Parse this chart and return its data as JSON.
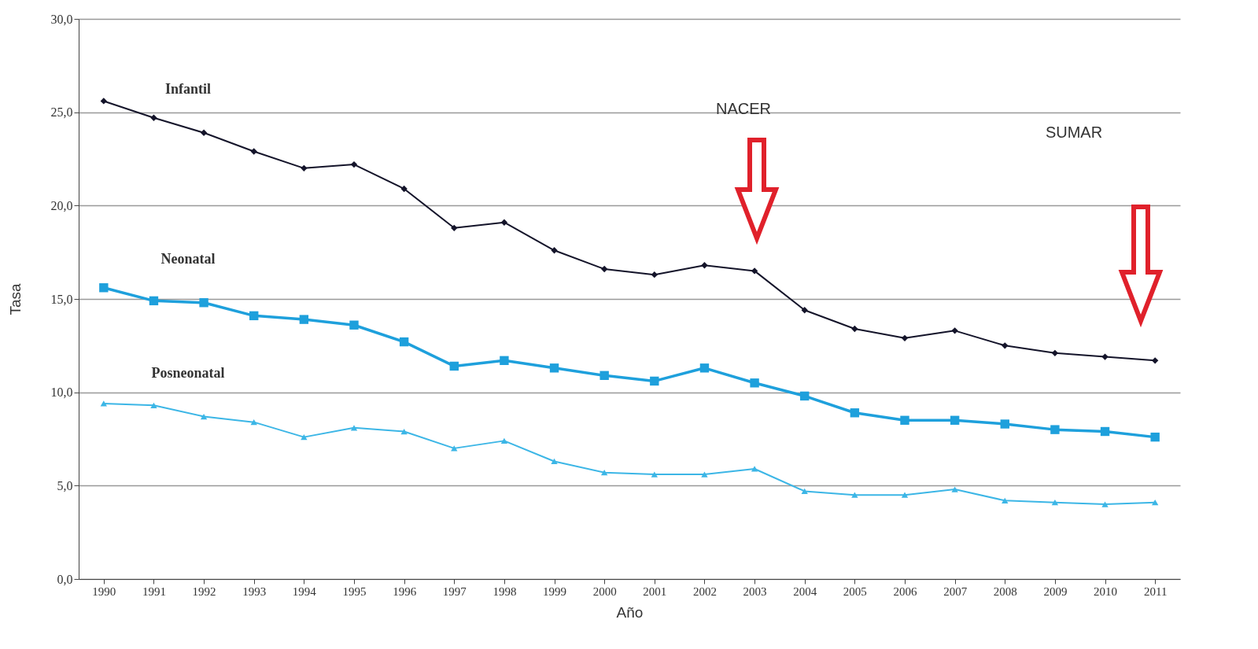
{
  "chart_data": {
    "type": "line",
    "xlabel": "Año",
    "ylabel": "Tasa",
    "categories": [
      "1990",
      "1991",
      "1992",
      "1993",
      "1994",
      "1995",
      "1996",
      "1997",
      "1998",
      "1999",
      "2000",
      "2001",
      "2002",
      "2003",
      "2004",
      "2005",
      "2006",
      "2007",
      "2008",
      "2009",
      "2010",
      "2011"
    ],
    "series": [
      {
        "name": "Infantil",
        "color": "#14142a",
        "marker": "diamond",
        "values": [
          25.6,
          24.7,
          23.9,
          22.9,
          22.0,
          22.2,
          20.9,
          18.8,
          19.1,
          17.6,
          16.6,
          16.3,
          16.8,
          16.5,
          14.4,
          13.4,
          12.9,
          13.3,
          12.5,
          12.1,
          11.9,
          11.7
        ]
      },
      {
        "name": "Neonatal",
        "color": "#1ea0dc",
        "marker": "square",
        "values": [
          15.6,
          14.9,
          14.8,
          14.1,
          13.9,
          13.6,
          12.7,
          11.4,
          11.7,
          11.3,
          10.9,
          10.6,
          11.3,
          10.5,
          9.8,
          8.9,
          8.5,
          8.5,
          8.3,
          8.0,
          7.9,
          7.6
        ]
      },
      {
        "name": "Posneonatal",
        "color": "#3cb6e6",
        "marker": "triangle",
        "values": [
          9.4,
          9.3,
          8.7,
          8.4,
          7.6,
          8.1,
          7.9,
          7.0,
          7.4,
          6.3,
          5.7,
          5.6,
          5.6,
          5.9,
          4.7,
          4.5,
          4.5,
          4.8,
          4.2,
          4.1,
          4.0,
          4.1
        ]
      }
    ],
    "ylim": [
      0,
      30
    ],
    "yticks": [
      {
        "value": 0,
        "label": "0,0"
      },
      {
        "value": 5,
        "label": "5,0"
      },
      {
        "value": 10,
        "label": "10,0"
      },
      {
        "value": 15,
        "label": "15,0"
      },
      {
        "value": 20,
        "label": "20,0"
      },
      {
        "value": 25,
        "label": "25,0"
      },
      {
        "value": 30,
        "label": "30,0"
      }
    ],
    "grid": "y",
    "line_style": "solid",
    "annotations": [
      "NACER",
      "SUMAR"
    ]
  }
}
